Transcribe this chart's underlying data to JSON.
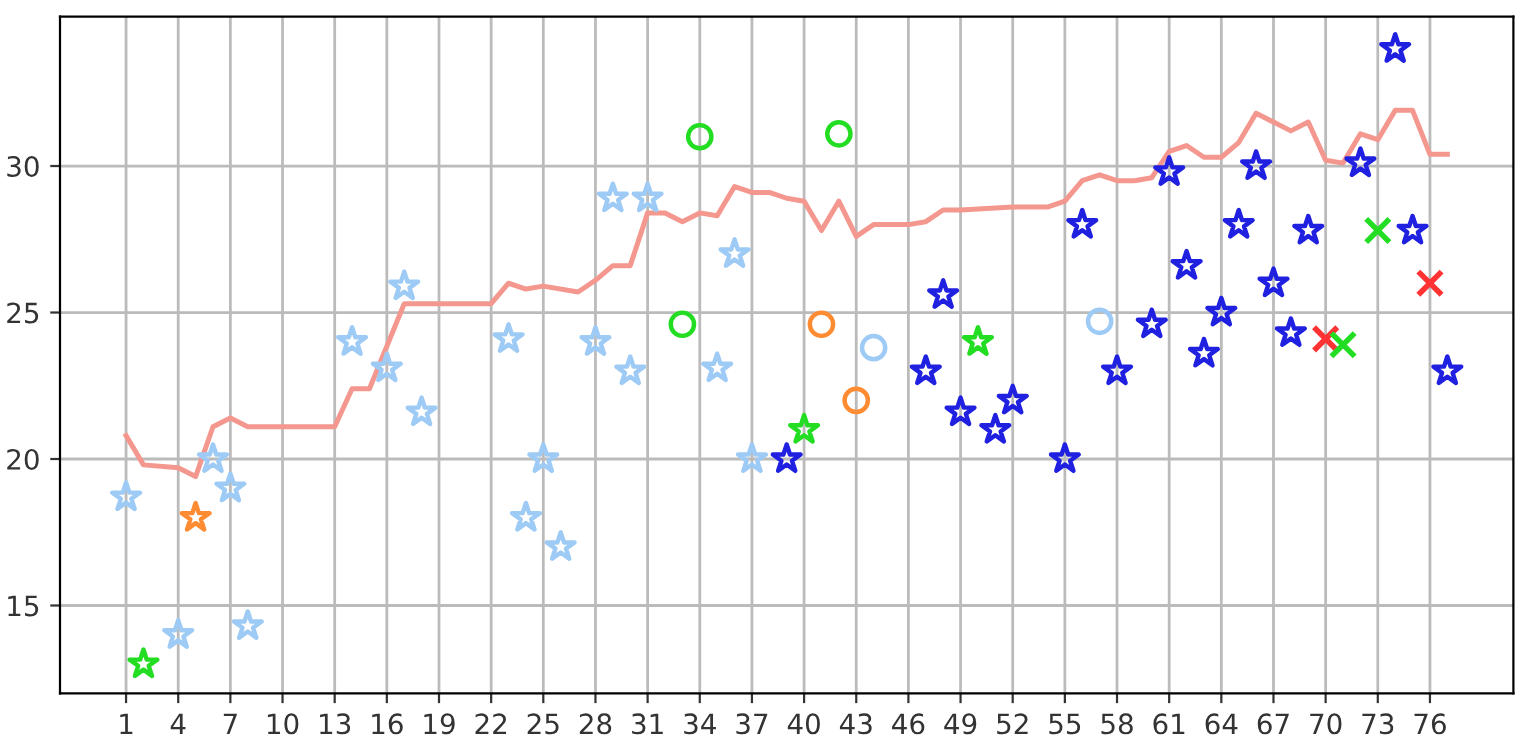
{
  "chart_data": {
    "type": "scatter",
    "xlim": [
      -2.8,
      80.8
    ],
    "ylim": [
      12,
      35.1
    ],
    "xticks": [
      1,
      4,
      7,
      10,
      13,
      16,
      19,
      22,
      25,
      28,
      31,
      34,
      37,
      40,
      43,
      46,
      49,
      52,
      55,
      58,
      61,
      64,
      67,
      70,
      73,
      76
    ],
    "yticks": [
      15,
      20,
      25,
      30
    ],
    "grid": true,
    "legend": false,
    "series": [
      {
        "type": "line",
        "color": "#f4978e",
        "marker": "none",
        "line_style": "solid",
        "x": [
          1,
          2,
          4,
          5,
          6,
          7,
          8,
          13,
          14,
          15,
          17,
          22,
          23,
          24,
          25,
          27,
          28,
          29,
          30,
          31,
          32,
          33,
          34,
          35,
          36,
          37,
          38,
          39,
          40,
          41,
          42,
          43,
          44,
          46,
          47,
          48,
          49,
          52,
          54,
          55,
          56,
          57,
          58,
          59,
          60,
          61,
          62,
          63,
          64,
          65,
          66,
          67,
          68,
          69,
          70,
          71,
          72,
          73,
          74,
          75,
          76,
          77
        ],
        "values": [
          20.8,
          19.8,
          19.7,
          19.4,
          21.1,
          21.4,
          21.1,
          21.1,
          22.4,
          22.4,
          25.3,
          25.3,
          26.0,
          25.8,
          25.9,
          25.7,
          26.1,
          26.6,
          26.6,
          28.4,
          28.4,
          28.1,
          28.4,
          28.3,
          29.3,
          29.1,
          29.1,
          28.9,
          28.8,
          27.8,
          28.8,
          27.6,
          28.0,
          28.0,
          28.1,
          28.5,
          28.5,
          28.6,
          28.6,
          28.8,
          29.5,
          29.7,
          29.5,
          29.5,
          29.6,
          30.5,
          30.7,
          30.3,
          30.3,
          30.8,
          31.8,
          31.5,
          31.2,
          31.5,
          30.2,
          30.1,
          31.1,
          30.9,
          31.9,
          31.9,
          30.4,
          30.4
        ]
      },
      {
        "color": "#9ecbf5",
        "marker": "star",
        "x": [
          1,
          4,
          6,
          7,
          8,
          14,
          16,
          17,
          18,
          23,
          24,
          25,
          26,
          28,
          29,
          30,
          31,
          35,
          36,
          37
        ],
        "values": [
          18.7,
          14.0,
          20.0,
          19.0,
          14.3,
          24.0,
          23.1,
          25.9,
          21.6,
          24.1,
          18.0,
          20.0,
          17.0,
          24.0,
          28.9,
          23.0,
          28.9,
          23.1,
          27.0,
          20.0
        ]
      },
      {
        "color": "#22dd22",
        "marker": "star",
        "x": [
          2,
          40,
          50
        ],
        "values": [
          13.0,
          21.0,
          24.0
        ]
      },
      {
        "color": "#ff8c33",
        "marker": "star",
        "x": [
          5
        ],
        "values": [
          18.0
        ]
      },
      {
        "color": "#2020e0",
        "marker": "star",
        "x": [
          39,
          47,
          48,
          49,
          51,
          52,
          55,
          56,
          58,
          60,
          61,
          62,
          63,
          64,
          65,
          66,
          67,
          68,
          69,
          72,
          74,
          75,
          77
        ],
        "values": [
          20.0,
          23.0,
          25.6,
          21.6,
          21.0,
          22.0,
          20.0,
          28.0,
          23.0,
          24.6,
          29.8,
          26.6,
          23.6,
          25.0,
          28.0,
          30.0,
          26.0,
          24.3,
          27.8,
          30.1,
          34.0,
          27.8,
          23.0
        ]
      },
      {
        "color": "#22dd22",
        "marker": "circle",
        "x": [
          33,
          34,
          42
        ],
        "values": [
          24.6,
          31.0,
          31.1
        ]
      },
      {
        "color": "#ff8c33",
        "marker": "circle",
        "x": [
          41,
          43
        ],
        "values": [
          24.6,
          22.0
        ]
      },
      {
        "color": "#9ecbf5",
        "marker": "circle",
        "x": [
          44,
          57
        ],
        "values": [
          23.8,
          24.7
        ]
      },
      {
        "color": "#ff3333",
        "marker": "cross",
        "x": [
          70,
          76
        ],
        "values": [
          24.1,
          26.0
        ]
      },
      {
        "color": "#22dd22",
        "marker": "cross",
        "x": [
          71,
          73
        ],
        "values": [
          23.9,
          27.8
        ]
      }
    ]
  }
}
